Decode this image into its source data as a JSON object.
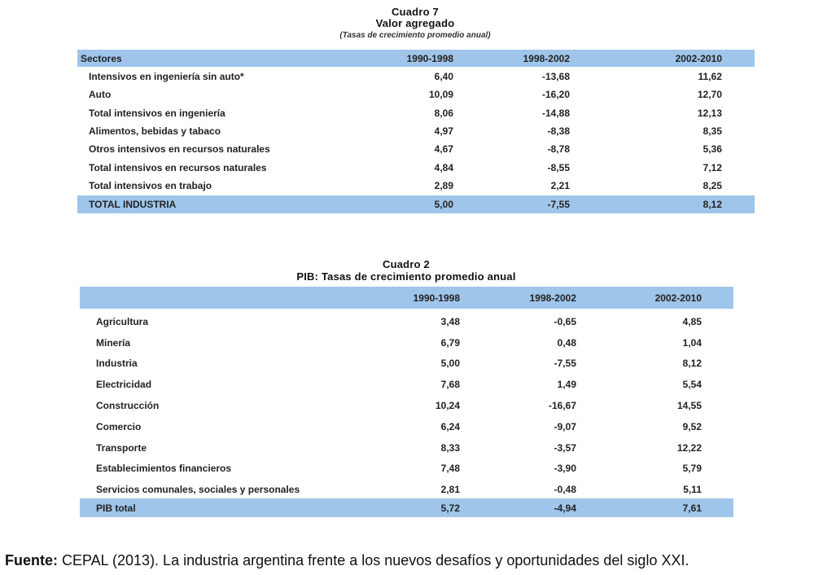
{
  "table1": {
    "title": "Cuadro 7",
    "subtitle": "Valor agregado",
    "note": "(Tasas de crecimiento promedio anual)",
    "headers": [
      "Sectores",
      "1990-1998",
      "1998-2002",
      "2002-2010"
    ],
    "rows": [
      [
        "Intensivos en ingeniería sin auto*",
        "6,40",
        "-13,68",
        "11,62"
      ],
      [
        "Auto",
        "10,09",
        "-16,20",
        "12,70"
      ],
      [
        "Total intensivos en ingeniería",
        "8,06",
        "-14,88",
        "12,13"
      ],
      [
        "Alimentos, bebidas y tabaco",
        "4,97",
        "-8,38",
        "8,35"
      ],
      [
        "Otros intensivos en recursos naturales",
        "4,67",
        "-8,78",
        "5,36"
      ],
      [
        "Total intensivos en recursos naturales",
        "4,84",
        "-8,55",
        "7,12"
      ],
      [
        "Total intensivos en trabajo",
        "2,89",
        "2,21",
        "8,25"
      ]
    ],
    "total": [
      "TOTAL INDUSTRIA",
      "5,00",
      "-7,55",
      "8,12"
    ]
  },
  "table2": {
    "title": "Cuadro 2",
    "subtitle": "PIB: Tasas de crecimiento promedio anual",
    "headers": [
      "",
      "1990-1998",
      "1998-2002",
      "2002-2010"
    ],
    "rows": [
      [
        "Agricultura",
        "3,48",
        "-0,65",
        "4,85"
      ],
      [
        "Minería",
        "6,79",
        "0,48",
        "1,04"
      ],
      [
        "Industria",
        "5,00",
        "-7,55",
        "8,12"
      ],
      [
        "Electricidad",
        "7,68",
        "1,49",
        "5,54"
      ],
      [
        "Construcción",
        "10,24",
        "-16,67",
        "14,55"
      ],
      [
        "Comercio",
        "6,24",
        "-9,07",
        "9,52"
      ],
      [
        "Transporte",
        "8,33",
        "-3,57",
        "12,22"
      ],
      [
        "Establecimientos financieros",
        "7,48",
        "-3,90",
        "5,79"
      ],
      [
        "Servicios comunales, sociales y personales",
        "2,81",
        "-0,48",
        "5,11"
      ]
    ],
    "total": [
      "PIB total",
      "5,72",
      "-4,94",
      "7,61"
    ]
  },
  "footer": {
    "label": "Fuente:",
    "text": " CEPAL (2013). La industria argentina frente a los nuevos desafíos y oportunidades del  siglo XXI."
  },
  "colors": {
    "header_fill": "#9fc5ea"
  }
}
